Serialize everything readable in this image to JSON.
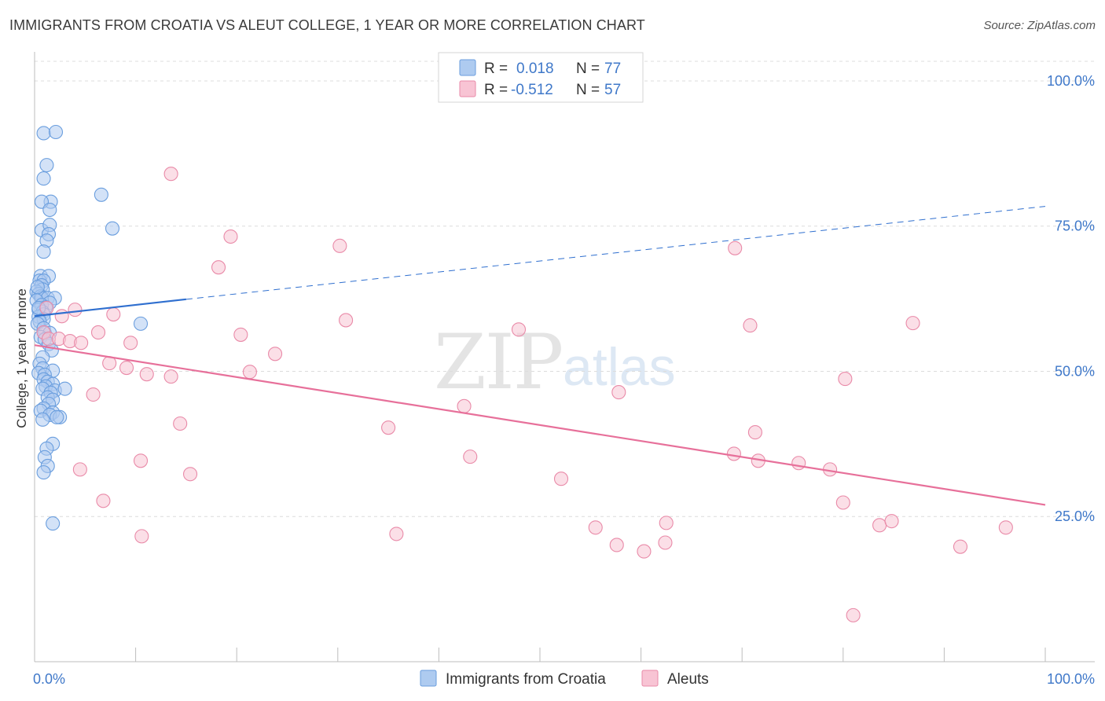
{
  "header": {
    "title": "IMMIGRANTS FROM CROATIA VS ALEUT COLLEGE, 1 YEAR OR MORE CORRELATION CHART",
    "source": "Source: ZipAtlas.com"
  },
  "watermark": {
    "zip": "ZIP",
    "atlas": "atlas"
  },
  "legend_box": {
    "rows": [
      {
        "r_label": "R =",
        "r_value": "0.018",
        "n_label": "N =",
        "n_value": "77",
        "color": "#aecbf0",
        "stroke": "#6a9ede"
      },
      {
        "r_label": "R =",
        "r_value": "-0.512",
        "n_label": "N =",
        "n_value": "57",
        "color": "#f8c4d4",
        "stroke": "#e98aa8"
      }
    ]
  },
  "bottom_legend": {
    "series1": "Immigrants from Croatia",
    "series2": "Aleuts"
  },
  "chart_data": {
    "type": "scatter",
    "title": "IMMIGRANTS FROM CROATIA VS ALEUT COLLEGE, 1 YEAR OR MORE CORRELATION CHART",
    "xlabel": "",
    "ylabel": "College, 1 year or more",
    "xlim": [
      0,
      100
    ],
    "ylim": [
      0,
      105
    ],
    "x_tick_labels": {
      "left": "0.0%",
      "right": "100.0%"
    },
    "y_ticks": [
      {
        "value": 25,
        "label": "25.0%"
      },
      {
        "value": 50,
        "label": "50.0%"
      },
      {
        "value": 75,
        "label": "75.0%"
      },
      {
        "value": 100,
        "label": "100.0%"
      }
    ],
    "grid": "dashed horizontal",
    "series": [
      {
        "name": "Immigrants from Croatia",
        "color": "#aecbf0",
        "stroke": "#6a9ede",
        "trend": {
          "x0": 0,
          "y0": 59.5,
          "x1": 15,
          "y1": 62.4,
          "solid_until": 15,
          "x_end": 100,
          "y_end": 78.4,
          "color": "#2f6fcf"
        },
        "points": [
          [
            0.9,
            91
          ],
          [
            2.1,
            91.2
          ],
          [
            1.2,
            85.5
          ],
          [
            0.9,
            83.2
          ],
          [
            1.6,
            79.2
          ],
          [
            0.7,
            79.2
          ],
          [
            1.5,
            77.8
          ],
          [
            6.6,
            80.4
          ],
          [
            0.7,
            74.3
          ],
          [
            1.5,
            75.2
          ],
          [
            1.4,
            73.6
          ],
          [
            1.2,
            72.5
          ],
          [
            0.9,
            70.6
          ],
          [
            7.7,
            74.6
          ],
          [
            0.6,
            66.4
          ],
          [
            1.4,
            66.4
          ],
          [
            0.5,
            65.6
          ],
          [
            0.9,
            65.6
          ],
          [
            0.7,
            64.8
          ],
          [
            0.8,
            64.1
          ],
          [
            0.2,
            63.7
          ],
          [
            0.4,
            63.3
          ],
          [
            0.6,
            62.9
          ],
          [
            0.7,
            62.6
          ],
          [
            1.3,
            62.6
          ],
          [
            2.0,
            62.6
          ],
          [
            0.2,
            62.2
          ],
          [
            1.5,
            61.8
          ],
          [
            0.7,
            61.4
          ],
          [
            1.1,
            61.0
          ],
          [
            0.4,
            60.6
          ],
          [
            0.8,
            60.2
          ],
          [
            0.9,
            59.8
          ],
          [
            0.4,
            59.4
          ],
          [
            0.9,
            59.0
          ],
          [
            0.5,
            58.6
          ],
          [
            0.3,
            58.2
          ],
          [
            10.5,
            58.2
          ],
          [
            0.9,
            57.4
          ],
          [
            1.0,
            56.6
          ],
          [
            1.5,
            56.6
          ],
          [
            0.6,
            55.9
          ],
          [
            1.0,
            55.5
          ],
          [
            1.4,
            54.7
          ],
          [
            1.7,
            53.6
          ],
          [
            0.8,
            52.4
          ],
          [
            0.5,
            51.3
          ],
          [
            0.8,
            50.5
          ],
          [
            1.8,
            50.1
          ],
          [
            0.4,
            49.7
          ],
          [
            1.0,
            49.4
          ],
          [
            0.9,
            48.6
          ],
          [
            1.3,
            48.2
          ],
          [
            1.8,
            47.8
          ],
          [
            1.1,
            47.4
          ],
          [
            0.8,
            47.0
          ],
          [
            2.0,
            46.7
          ],
          [
            3.0,
            47.0
          ],
          [
            1.6,
            46.3
          ],
          [
            1.3,
            45.5
          ],
          [
            1.8,
            45.1
          ],
          [
            1.4,
            44.4
          ],
          [
            0.9,
            43.6
          ],
          [
            0.6,
            43.2
          ],
          [
            1.8,
            42.9
          ],
          [
            1.5,
            42.5
          ],
          [
            2.5,
            42.1
          ],
          [
            2.2,
            42.1
          ],
          [
            0.8,
            41.7
          ],
          [
            1.8,
            37.5
          ],
          [
            1.2,
            36.7
          ],
          [
            1.0,
            35.2
          ],
          [
            1.3,
            33.7
          ],
          [
            0.9,
            32.6
          ],
          [
            1.8,
            23.8
          ],
          [
            0.4,
            60.9
          ],
          [
            0.3,
            64.5
          ]
        ]
      },
      {
        "name": "Aleuts",
        "color": "#f8c4d4",
        "stroke": "#e98aa8",
        "trend": {
          "x0": 0,
          "y0": 54.5,
          "x1": 100,
          "y1": 27.0,
          "color": "#e7709a"
        },
        "points": [
          [
            13.5,
            84.0
          ],
          [
            19.4,
            73.2
          ],
          [
            30.2,
            71.6
          ],
          [
            69.3,
            71.2
          ],
          [
            18.2,
            67.9
          ],
          [
            4.0,
            60.6
          ],
          [
            1.2,
            60.9
          ],
          [
            7.8,
            59.8
          ],
          [
            2.7,
            59.5
          ],
          [
            30.8,
            58.8
          ],
          [
            70.8,
            57.9
          ],
          [
            86.9,
            58.3
          ],
          [
            0.9,
            56.7
          ],
          [
            6.3,
            56.7
          ],
          [
            20.4,
            56.3
          ],
          [
            47.9,
            57.2
          ],
          [
            1.4,
            55.6
          ],
          [
            2.4,
            55.6
          ],
          [
            3.5,
            55.2
          ],
          [
            4.6,
            54.9
          ],
          [
            9.5,
            54.9
          ],
          [
            23.8,
            53.0
          ],
          [
            7.4,
            51.4
          ],
          [
            9.1,
            50.6
          ],
          [
            11.1,
            49.5
          ],
          [
            21.3,
            49.9
          ],
          [
            13.5,
            49.1
          ],
          [
            80.2,
            48.7
          ],
          [
            5.8,
            46.0
          ],
          [
            57.8,
            46.4
          ],
          [
            14.4,
            41.0
          ],
          [
            35.0,
            40.3
          ],
          [
            71.3,
            39.5
          ],
          [
            10.5,
            34.6
          ],
          [
            43.1,
            35.3
          ],
          [
            69.2,
            35.8
          ],
          [
            71.6,
            34.6
          ],
          [
            75.6,
            34.2
          ],
          [
            78.7,
            33.1
          ],
          [
            4.5,
            33.1
          ],
          [
            15.4,
            32.3
          ],
          [
            52.1,
            31.5
          ],
          [
            6.8,
            27.7
          ],
          [
            80.0,
            27.4
          ],
          [
            10.6,
            21.6
          ],
          [
            35.8,
            22.0
          ],
          [
            55.5,
            23.1
          ],
          [
            62.5,
            23.9
          ],
          [
            83.6,
            23.5
          ],
          [
            84.8,
            24.2
          ],
          [
            96.1,
            23.1
          ],
          [
            57.6,
            20.1
          ],
          [
            60.3,
            19.0
          ],
          [
            62.4,
            20.5
          ],
          [
            91.6,
            19.8
          ],
          [
            81.0,
            8.0
          ],
          [
            42.5,
            44.0
          ]
        ]
      }
    ]
  }
}
